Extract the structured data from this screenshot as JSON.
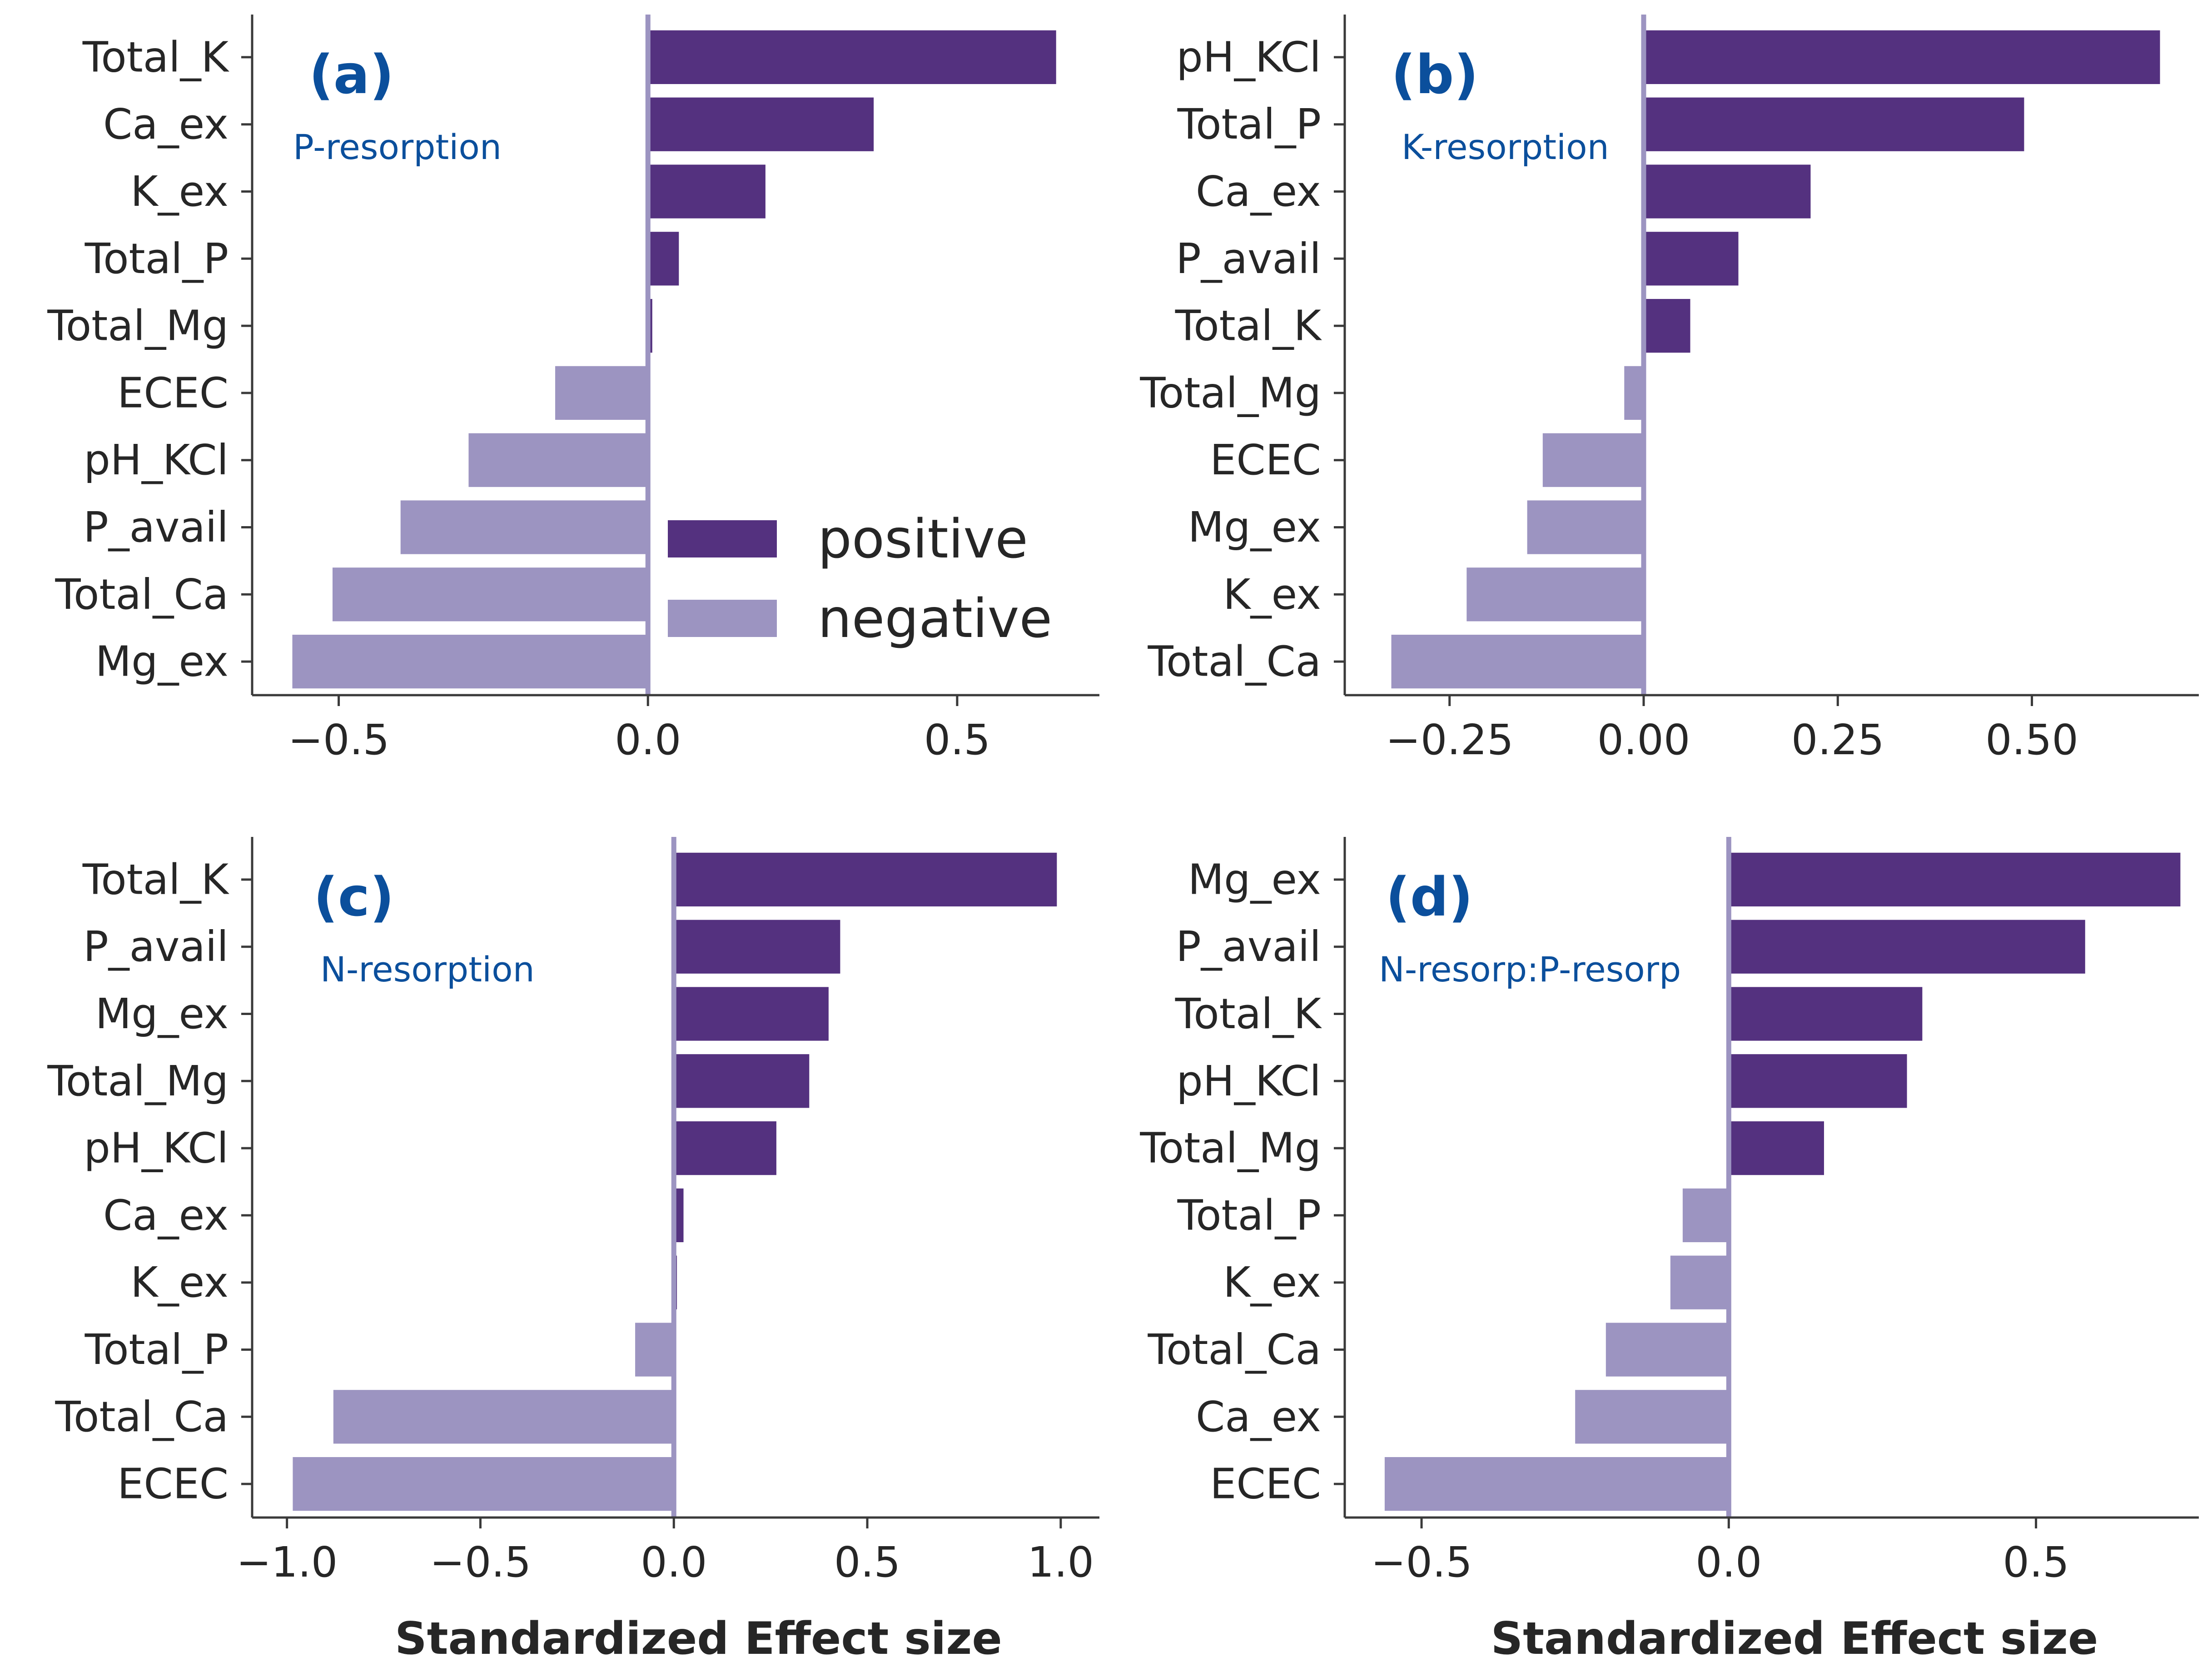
{
  "colors": {
    "positive": "#54317f",
    "negative": "#9c94c1",
    "zero_line": "#9c94c1",
    "annotation": "#0b4f9c",
    "axis": "#3a3a3a"
  },
  "legend": {
    "positive_label": "positive",
    "negative_label": "negative"
  },
  "chart_data": [
    {
      "type": "bar",
      "orientation": "horizontal",
      "panel_label": "(a)",
      "subtitle": "P-resorption",
      "xlabel": "",
      "xlim": [
        -0.64,
        0.73
      ],
      "xticks": [
        -0.5,
        0.0,
        0.5
      ],
      "xtick_labels": [
        "−0.5",
        "0.0",
        "0.5"
      ],
      "categories": [
        "Total_K",
        "Ca_ex",
        "K_ex",
        "Total_P",
        "Total_Mg",
        "ECEC",
        "pH_KCl",
        "P_avail",
        "Total_Ca",
        "Mg_ex"
      ],
      "values": [
        0.66,
        0.365,
        0.19,
        0.05,
        0.007,
        -0.15,
        -0.29,
        -0.4,
        -0.51,
        -0.575
      ]
    },
    {
      "type": "bar",
      "orientation": "horizontal",
      "panel_label": "(b)",
      "subtitle": "K-resorption",
      "xlabel": "",
      "xlim": [
        -0.385,
        0.715
      ],
      "xticks": [
        -0.25,
        0.0,
        0.25,
        0.5
      ],
      "xtick_labels": [
        "−0.25",
        "0.00",
        "0.25",
        "0.50"
      ],
      "categories": [
        "pH_KCl",
        "Total_P",
        "Ca_ex",
        "P_avail",
        "Total_K",
        "Total_Mg",
        "ECEC",
        "Mg_ex",
        "K_ex",
        "Total_Ca"
      ],
      "values": [
        0.665,
        0.49,
        0.215,
        0.122,
        0.06,
        -0.025,
        -0.13,
        -0.15,
        -0.228,
        -0.325
      ]
    },
    {
      "type": "bar",
      "orientation": "horizontal",
      "panel_label": "(c)",
      "subtitle": "N-resorption",
      "xlabel": "Standardized Effect size",
      "xlim": [
        -1.09,
        1.1
      ],
      "xticks": [
        -1.0,
        -0.5,
        0.0,
        0.5,
        1.0
      ],
      "xtick_labels": [
        "−1.0",
        "−0.5",
        "0.0",
        "0.5",
        "1.0"
      ],
      "categories": [
        "Total_K",
        "P_avail",
        "Mg_ex",
        "Total_Mg",
        "pH_KCl",
        "Ca_ex",
        "K_ex",
        "Total_P",
        "Total_Ca",
        "ECEC"
      ],
      "values": [
        0.99,
        0.43,
        0.4,
        0.35,
        0.265,
        0.025,
        0.008,
        -0.1,
        -0.88,
        -0.985
      ]
    },
    {
      "type": "bar",
      "orientation": "horizontal",
      "panel_label": "(d)",
      "subtitle": "N-resorp:P-resorp",
      "xlabel": "Standardized Effect size",
      "xlim": [
        -0.625,
        0.765
      ],
      "xticks": [
        -0.5,
        0.0,
        0.5
      ],
      "xtick_labels": [
        "−0.5",
        "0.0",
        "0.5"
      ],
      "categories": [
        "Mg_ex",
        "P_avail",
        "Total_K",
        "pH_KCl",
        "Total_Mg",
        "Total_P",
        "K_ex",
        "Total_Ca",
        "Ca_ex",
        "ECEC"
      ],
      "values": [
        0.735,
        0.58,
        0.315,
        0.29,
        0.155,
        -0.075,
        -0.095,
        -0.2,
        -0.25,
        -0.56
      ]
    }
  ]
}
